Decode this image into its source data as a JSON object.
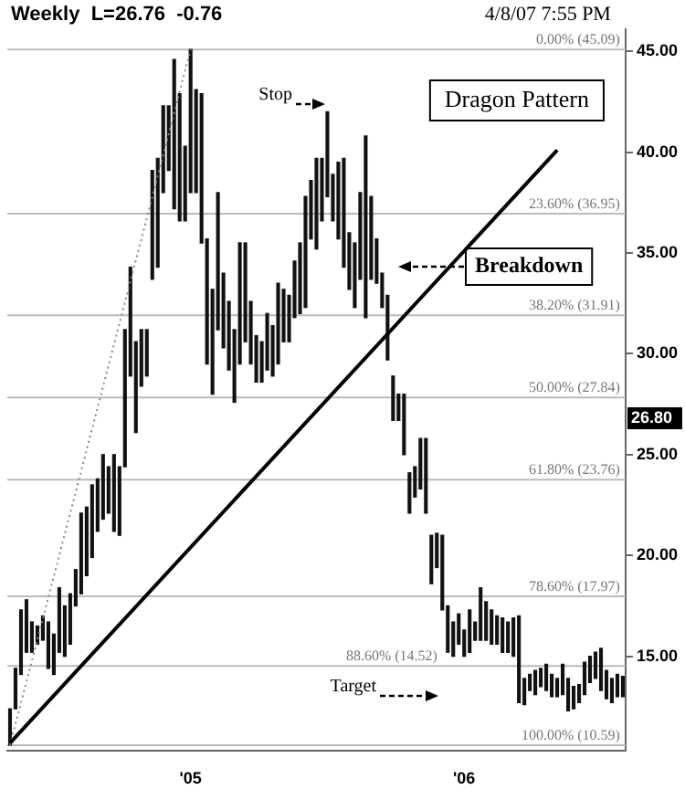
{
  "chart_data": {
    "type": "bar",
    "title": "Weekly  L=26.76  -0.76",
    "subtitle": "4/8/07 7:55 PM",
    "categories": [
      null,
      null,
      null,
      null,
      null,
      null,
      null,
      null,
      null,
      null,
      null,
      null,
      null,
      null,
      null,
      null,
      null,
      null,
      null,
      null,
      null,
      null,
      null,
      null,
      null,
      null,
      null,
      null,
      null,
      null,
      null,
      null,
      null,
      "'05",
      null,
      null,
      null,
      null,
      null,
      null,
      null,
      null,
      null,
      null,
      null,
      null,
      null,
      null,
      null,
      null,
      null,
      null,
      null,
      null,
      null,
      null,
      null,
      null,
      null,
      null,
      null,
      null,
      null,
      null,
      null,
      null,
      null,
      null,
      null,
      null,
      null,
      null,
      null,
      null,
      null,
      null,
      null,
      null,
      null,
      null,
      null,
      null,
      null,
      "'06",
      null,
      null,
      null,
      null,
      null,
      null,
      null,
      null,
      null,
      null,
      null,
      null,
      null,
      null,
      null,
      null,
      null,
      null,
      null,
      null,
      null,
      null,
      null,
      null,
      null,
      null,
      null,
      null,
      null
    ],
    "series": [
      {
        "color": "#111111",
        "base": [
          10.6,
          12.4,
          14.1,
          15.2,
          15.2,
          15.6,
          15.8,
          14.4,
          14.1,
          15.2,
          15.0,
          15.6,
          17.5,
          18.1,
          19.0,
          19.9,
          21.2,
          21.8,
          22.1,
          21.2,
          21.0,
          24.4,
          28.9,
          26.1,
          28.4,
          28.9,
          33.7,
          34.3,
          38.0,
          39.1,
          37.2,
          36.6,
          36.6,
          38.0,
          38.0,
          35.5,
          29.5,
          28.0,
          31.2,
          30.3,
          29.2,
          27.6,
          29.5,
          30.6,
          29.5,
          28.6,
          28.6,
          29.2,
          28.9,
          29.5,
          30.6,
          30.6,
          31.8,
          32.0,
          32.3,
          35.7,
          35.2,
          36.6,
          37.8,
          36.6,
          35.7,
          34.3,
          33.2,
          32.3,
          33.7,
          31.8,
          33.7,
          33.5,
          32.3,
          29.7,
          26.7,
          26.7,
          25.0,
          22.1,
          22.9,
          23.3,
          22.1,
          18.6,
          19.4,
          17.3,
          15.2,
          15.0,
          15.6,
          15.0,
          15.2,
          15.8,
          15.8,
          15.8,
          15.6,
          15.6,
          15.2,
          15.2,
          15.0,
          12.7,
          12.6,
          13.3,
          13.1,
          13.5,
          13.3,
          13.0,
          13.0,
          13.1,
          12.3,
          12.4,
          12.7,
          13.1,
          13.7,
          13.9,
          13.3,
          12.9,
          12.7,
          13.0,
          13.0
        ],
        "values": [
          1.8,
          2.0,
          3.2,
          2.6,
          1.5,
          0.9,
          1.2,
          2.3,
          2.0,
          3.2,
          2.5,
          2.5,
          1.8,
          4.0,
          3.4,
          3.6,
          2.6,
          3.2,
          2.3,
          3.8,
          3.4,
          6.8,
          5.4,
          4.5,
          2.8,
          2.3,
          5.4,
          5.4,
          4.3,
          3.2,
          7.4,
          6.3,
          3.7,
          7.1,
          5.1,
          7.4,
          6.2,
          5.2,
          6.8,
          3.7,
          3.4,
          3.6,
          6.0,
          4.9,
          3.1,
          2.3,
          2.0,
          2.8,
          2.5,
          4.0,
          2.6,
          2.3,
          2.8,
          3.5,
          5.5,
          2.9,
          4.5,
          3.1,
          4.2,
          2.3,
          3.8,
          5.4,
          2.8,
          3.2,
          4.3,
          9.0,
          4.1,
          2.2,
          1.7,
          3.2,
          2.2,
          1.3,
          3.0,
          2.0,
          1.5,
          2.5,
          3.7,
          2.4,
          1.7,
          3.7,
          2.3,
          1.7,
          1.5,
          1.3,
          2.1,
          0.9,
          2.6,
          1.9,
          1.7,
          1.4,
          1.7,
          1.5,
          1.9,
          4.3,
          1.3,
          0.8,
          1.2,
          0.9,
          1.3,
          1.1,
          0.9,
          1.5,
          1.6,
          1.1,
          0.9,
          1.6,
          1.3,
          1.3,
          2.1,
          1.4,
          1.2,
          1.1,
          1.0
        ]
      },
      {
        "type": "line",
        "color": "#000000",
        "line_style": "solid",
        "values": [
          10.7,
          null,
          null,
          null,
          null,
          null,
          null,
          null,
          null,
          null,
          null,
          null,
          null,
          null,
          null,
          null,
          null,
          null,
          null,
          null,
          null,
          null,
          null,
          null,
          null,
          null,
          null,
          null,
          null,
          null,
          null,
          null,
          null,
          null,
          null,
          null,
          null,
          null,
          null,
          null,
          null,
          null,
          null,
          null,
          null,
          null,
          null,
          null,
          null,
          null,
          null,
          null,
          null,
          null,
          null,
          null,
          null,
          null,
          null,
          null,
          null,
          null,
          null,
          null,
          null,
          null,
          null,
          null,
          null,
          null,
          null,
          null,
          null,
          null,
          null,
          null,
          null,
          null,
          null,
          null,
          null,
          null,
          null,
          null,
          null,
          null,
          null,
          null,
          null,
          null,
          null,
          null,
          null,
          null,
          null,
          null,
          null,
          null,
          null,
          null,
          40.1,
          null,
          null,
          null,
          null,
          null,
          null,
          null,
          null,
          null,
          null,
          null,
          null
        ]
      },
      {
        "type": "line",
        "color": "#888888",
        "line_style": "dotted",
        "values": [
          10.6,
          null,
          null,
          null,
          null,
          null,
          null,
          null,
          null,
          null,
          null,
          null,
          null,
          null,
          null,
          null,
          null,
          null,
          null,
          null,
          null,
          null,
          null,
          null,
          null,
          null,
          null,
          null,
          null,
          null,
          null,
          null,
          null,
          45.1,
          null,
          null,
          null,
          null,
          null,
          null,
          null,
          null,
          null,
          null,
          null,
          null,
          null,
          null,
          null,
          null,
          null,
          null,
          null,
          null,
          null,
          null,
          null,
          null,
          null,
          null,
          null,
          null,
          null,
          null,
          null,
          null,
          null,
          null,
          null,
          null,
          null,
          null,
          null,
          null,
          null,
          null,
          null,
          null,
          null,
          null,
          null,
          null,
          null,
          null,
          null,
          null,
          null,
          null,
          null,
          null,
          null,
          null,
          null,
          null,
          null,
          null,
          null,
          null,
          null,
          null,
          null,
          null,
          null,
          null,
          null,
          null,
          null,
          null,
          null,
          null,
          null,
          null,
          null
        ]
      }
    ],
    "ylim": [
      10.3,
      46.1
    ],
    "yticks": [
      {
        "value": 15,
        "label": "15.00"
      },
      {
        "value": 20,
        "label": "20.00"
      },
      {
        "value": 25,
        "label": "25.00"
      },
      {
        "value": 30,
        "label": "30.00"
      },
      {
        "value": 35,
        "label": "35.00"
      },
      {
        "value": 40,
        "label": "40.00"
      },
      {
        "value": 45,
        "label": "45.00"
      }
    ],
    "grid": false,
    "legend": false,
    "ref_lines": [
      {
        "axis": "y",
        "value": 45.09,
        "label": "0.00% (45.09)",
        "color": "#bbbbbb"
      },
      {
        "axis": "y",
        "value": 36.95,
        "label": "23.60% (36.95)",
        "color": "#bbbbbb"
      },
      {
        "axis": "y",
        "value": 31.91,
        "label": "38.20% (31.91)",
        "color": "#bbbbbb"
      },
      {
        "axis": "y",
        "value": 27.84,
        "label": "50.00% (27.84)",
        "color": "#bbbbbb"
      },
      {
        "axis": "y",
        "value": 23.76,
        "label": "61.80% (23.76)",
        "color": "#bbbbbb"
      },
      {
        "axis": "y",
        "value": 17.97,
        "label": "78.60% (17.97)",
        "color": "#bbbbbb"
      },
      {
        "axis": "y",
        "value": 14.52,
        "label": "88.60% (14.52)",
        "color": "#bbbbbb"
      },
      {
        "axis": "y",
        "value": 10.59,
        "label": "100.00% (10.59)",
        "color": "#bbbbbb"
      }
    ],
    "annotations": [
      "Stop",
      "Breakdown",
      "Target",
      "Dragon Pattern",
      {
        "text": "26.80",
        "y": 26.8
      }
    ]
  }
}
